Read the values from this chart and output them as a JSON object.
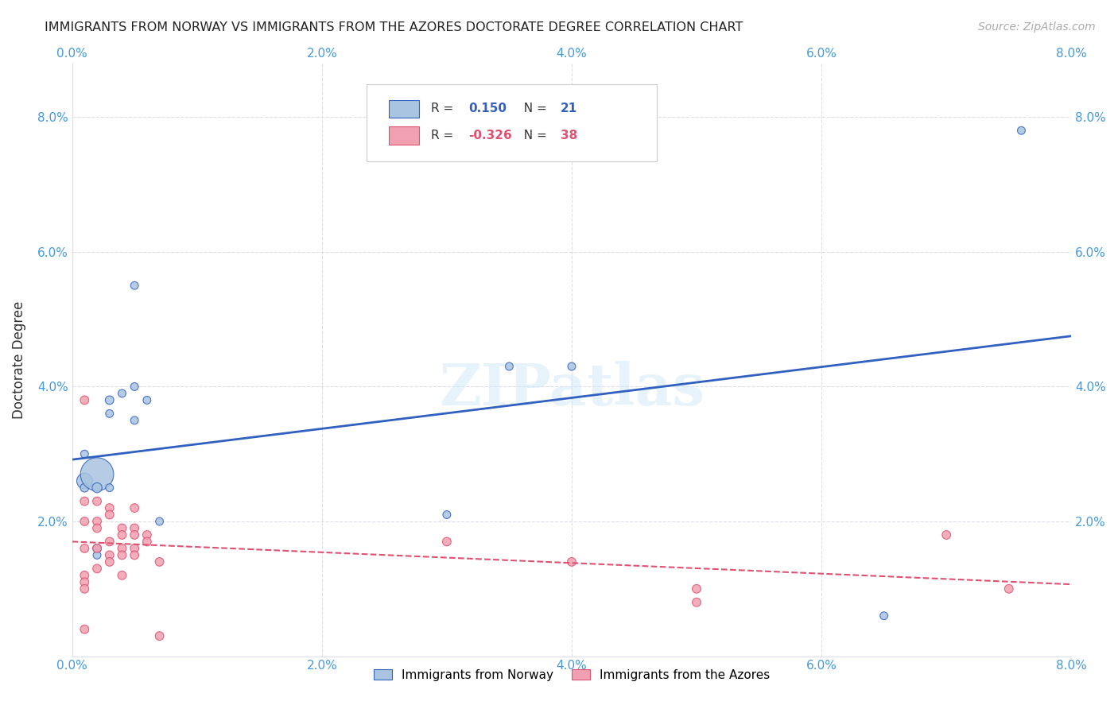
{
  "title": "IMMIGRANTS FROM NORWAY VS IMMIGRANTS FROM THE AZORES DOCTORATE DEGREE CORRELATION CHART",
  "source": "Source: ZipAtlas.com",
  "xlabel": "",
  "ylabel": "Doctorate Degree",
  "xlim": [
    0.0,
    0.08
  ],
  "ylim": [
    0.0,
    0.088
  ],
  "xticks": [
    0.0,
    0.02,
    0.04,
    0.06,
    0.08
  ],
  "yticks": [
    0.0,
    0.02,
    0.04,
    0.06,
    0.08
  ],
  "xticklabels": [
    "0.0%",
    "2.0%",
    "4.0%",
    "6.0%",
    "8.0%"
  ],
  "yticklabels": [
    "",
    "2.0%",
    "4.0%",
    "6.0%",
    "8.0%"
  ],
  "legend_norway": "Immigrants from Norway",
  "legend_azores": "Immigrants from the Azores",
  "r_norway": "0.150",
  "n_norway": "21",
  "r_azores": "-0.326",
  "n_azores": "38",
  "norway_color": "#a8c4e0",
  "azores_color": "#f0a0b0",
  "norway_line_color": "#3060c0",
  "azores_line_color": "#e05070",
  "watermark": "ZIPatlas",
  "norway_x": [
    0.001,
    0.001,
    0.001,
    0.002,
    0.002,
    0.002,
    0.002,
    0.003,
    0.003,
    0.003,
    0.004,
    0.005,
    0.005,
    0.005,
    0.006,
    0.007,
    0.03,
    0.035,
    0.04,
    0.065,
    0.076
  ],
  "norway_y": [
    0.026,
    0.025,
    0.03,
    0.027,
    0.025,
    0.016,
    0.015,
    0.038,
    0.036,
    0.025,
    0.039,
    0.04,
    0.035,
    0.055,
    0.038,
    0.02,
    0.021,
    0.043,
    0.043,
    0.006,
    0.078
  ],
  "norway_size": [
    200,
    60,
    50,
    900,
    80,
    60,
    50,
    60,
    50,
    50,
    50,
    50,
    50,
    50,
    50,
    50,
    50,
    50,
    50,
    50,
    50
  ],
  "azores_x": [
    0.001,
    0.001,
    0.001,
    0.001,
    0.001,
    0.001,
    0.001,
    0.001,
    0.002,
    0.002,
    0.002,
    0.002,
    0.002,
    0.003,
    0.003,
    0.003,
    0.003,
    0.003,
    0.004,
    0.004,
    0.004,
    0.004,
    0.004,
    0.005,
    0.005,
    0.005,
    0.005,
    0.005,
    0.006,
    0.006,
    0.007,
    0.007,
    0.03,
    0.04,
    0.05,
    0.05,
    0.07,
    0.075
  ],
  "azores_y": [
    0.038,
    0.023,
    0.02,
    0.016,
    0.012,
    0.011,
    0.01,
    0.004,
    0.023,
    0.02,
    0.019,
    0.016,
    0.013,
    0.022,
    0.021,
    0.017,
    0.015,
    0.014,
    0.019,
    0.018,
    0.016,
    0.015,
    0.012,
    0.022,
    0.019,
    0.018,
    0.016,
    0.015,
    0.018,
    0.017,
    0.014,
    0.003,
    0.017,
    0.014,
    0.01,
    0.008,
    0.018,
    0.01
  ],
  "azores_size": [
    60,
    60,
    60,
    60,
    60,
    60,
    60,
    60,
    60,
    60,
    60,
    60,
    60,
    60,
    60,
    60,
    60,
    60,
    60,
    60,
    60,
    60,
    60,
    60,
    60,
    60,
    60,
    60,
    60,
    60,
    60,
    60,
    60,
    60,
    60,
    60,
    60,
    60
  ]
}
